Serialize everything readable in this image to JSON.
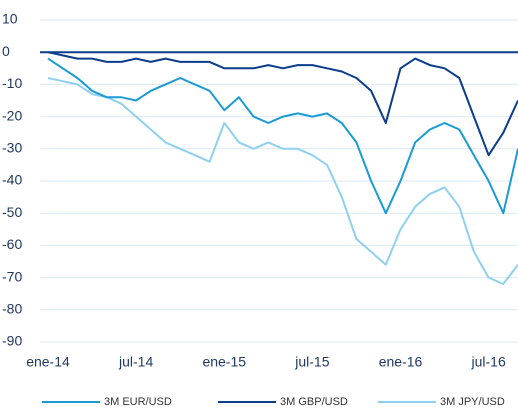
{
  "chart_data": {
    "type": "line",
    "categories": [
      "ene-14",
      null,
      null,
      null,
      null,
      null,
      "jul-14",
      null,
      null,
      null,
      null,
      null,
      "ene-15",
      null,
      null,
      null,
      null,
      null,
      "jul-15",
      null,
      null,
      null,
      null,
      null,
      "ene-16",
      null,
      null,
      null,
      null,
      null,
      "jul-16",
      null,
      null
    ],
    "series": [
      {
        "name": "3M EUR/USD",
        "color": "#1a9ad6",
        "values": [
          -2,
          -5,
          -8,
          -12,
          -14,
          -14,
          -15,
          -12,
          -10,
          -8,
          -10,
          -12,
          -18,
          -14,
          -20,
          -22,
          -20,
          -19,
          -20,
          -19,
          -22,
          -28,
          -40,
          -50,
          -40,
          -28,
          -24,
          -22,
          -24,
          -32,
          -40,
          -50,
          -30
        ]
      },
      {
        "name": "3M GBP/USD",
        "color": "#0b3d8c",
        "values": [
          0,
          -1,
          -2,
          -2,
          -3,
          -3,
          -2,
          -3,
          -2,
          -3,
          -3,
          -3,
          -5,
          -5,
          -5,
          -4,
          -5,
          -4,
          -4,
          -5,
          -6,
          -8,
          -12,
          -22,
          -5,
          -2,
          -4,
          -5,
          -8,
          -20,
          -32,
          -25,
          -15
        ]
      },
      {
        "name": "3M JPY/USD",
        "color": "#8fd0f0",
        "values": [
          -8,
          -9,
          -10,
          -13,
          -14,
          -16,
          -20,
          -24,
          -28,
          -30,
          -32,
          -34,
          -22,
          -28,
          -30,
          -28,
          -30,
          -30,
          -32,
          -35,
          -45,
          -58,
          -62,
          -66,
          -55,
          -48,
          -44,
          -42,
          -48,
          -62,
          -70,
          -72,
          -66
        ]
      }
    ],
    "ylim": [
      -90,
      10
    ],
    "yticks": [
      -90,
      -80,
      -70,
      -60,
      -50,
      -40,
      -30,
      -20,
      -10,
      0,
      10
    ],
    "grid": true,
    "legend": "bottom"
  }
}
